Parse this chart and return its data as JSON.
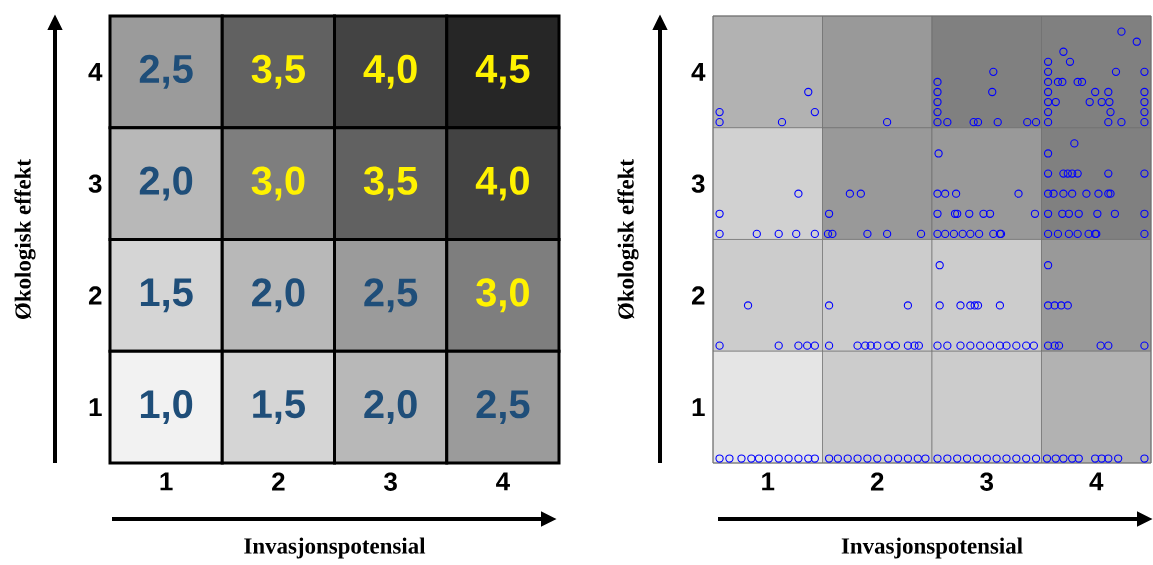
{
  "chart_data": [
    {
      "type": "heatmap",
      "categories": [
        "1",
        "2",
        "3",
        "4"
      ],
      "y_categories": [
        "4",
        "3",
        "2",
        "1"
      ],
      "cells": [
        [
          2.5,
          3.5,
          4.0,
          4.5
        ],
        [
          2.0,
          3.0,
          3.5,
          4.0
        ],
        [
          1.5,
          2.0,
          2.5,
          3.0
        ],
        [
          1.0,
          1.5,
          2.0,
          2.5
        ]
      ],
      "cell_labels": [
        [
          "2,5",
          "3,5",
          "4,0",
          "4,5"
        ],
        [
          "2,0",
          "3,0",
          "3,5",
          "4,0"
        ],
        [
          "1,5",
          "2,0",
          "2,5",
          "3,0"
        ],
        [
          "1,0",
          "1,5",
          "2,0",
          "2,5"
        ]
      ],
      "xlabel": "Invasjonspotensial",
      "ylabel": "Økologisk effekt"
    },
    {
      "type": "scatter",
      "xlabel": "Invasjonspotensial",
      "ylabel": "Økologisk effekt",
      "marker": "circle",
      "color": "#0000ff",
      "xlim": [
        0.5,
        4.5
      ],
      "ylim": [
        0.5,
        4.5
      ],
      "xticks": [
        1,
        2,
        3,
        4
      ],
      "yticks": [
        1,
        2,
        3,
        4
      ],
      "x": [
        0.56,
        0.56,
        1.13,
        1.37,
        1.43,
        2.09,
        2.55,
        2.55,
        2.55,
        2.55,
        2.55,
        2.64,
        2.88,
        2.92,
        3.06,
        3.05,
        3.1,
        3.37,
        3.45,
        3.56,
        3.56,
        3.56,
        3.56,
        3.56,
        3.56,
        3.56,
        3.63,
        3.65,
        3.69,
        3.7,
        3.76,
        3.83,
        3.87,
        3.94,
        3.99,
        4.05,
        4.11,
        4.12,
        4.13,
        4.11,
        4.18,
        4.23,
        4.23,
        4.37,
        4.44,
        4.44,
        4.44,
        4.44,
        4.44,
        0.56,
        0.9,
        1.1,
        1.26,
        1.43,
        0.56,
        1.28,
        1.55,
        1.59,
        1.91,
        2.09,
        2.4,
        1.56,
        1.75,
        1.85,
        2.55,
        2.62,
        2.7,
        2.78,
        2.85,
        2.93,
        3.06,
        3.12,
        3.13,
        2.55,
        2.71,
        2.73,
        2.84,
        2.97,
        3.03,
        3.44,
        2.55,
        2.62,
        2.72,
        3.29,
        2.56,
        3.56,
        3.65,
        3.75,
        3.83,
        3.93,
        3.99,
        4.0,
        4.44,
        3.56,
        3.69,
        3.75,
        3.84,
        4.01,
        4.17,
        4.44,
        3.56,
        3.61,
        3.7,
        3.78,
        3.91,
        4.02,
        4.11,
        4.13,
        3.56,
        3.7,
        3.74,
        3.78,
        3.83,
        4.11,
        4.44,
        3.56,
        3.8,
        0.56,
        1.1,
        1.28,
        1.36,
        1.43,
        0.82,
        1.56,
        1.82,
        1.89,
        1.94,
        2.0,
        2.1,
        2.17,
        2.28,
        2.34,
        2.38,
        1.56,
        2.28,
        2.55,
        2.64,
        2.76,
        2.85,
        2.94,
        3.03,
        3.12,
        3.18,
        3.27,
        3.36,
        3.43,
        2.57,
        2.76,
        2.85,
        2.89,
        2.92,
        3.12,
        2.57,
        3.56,
        3.62,
        3.66,
        4.04,
        4.11,
        4.44,
        3.56,
        3.62,
        3.68,
        3.74,
        3.56,
        0.56,
        0.65,
        0.76,
        0.85,
        0.92,
        1.01,
        1.1,
        1.19,
        1.28,
        1.37,
        1.43,
        1.56,
        1.64,
        1.73,
        1.82,
        1.91,
        2.0,
        2.1,
        2.19,
        2.28,
        2.37,
        2.44,
        2.55,
        2.64,
        2.73,
        2.82,
        2.91,
        3.0,
        3.09,
        3.18,
        3.27,
        3.36,
        3.45,
        3.55,
        3.63,
        3.7,
        3.78,
        3.84,
        3.99,
        4.05,
        4.11,
        4.2,
        4.44
      ],
      "values": [
        3.64,
        3.55,
        3.55,
        3.82,
        3.64,
        3.55,
        3.91,
        3.82,
        3.73,
        3.64,
        3.55,
        3.55,
        3.55,
        3.55,
        4.0,
        3.82,
        3.55,
        3.55,
        3.55,
        4.09,
        4.0,
        3.91,
        3.82,
        3.73,
        3.64,
        3.55,
        3.73,
        3.91,
        3.91,
        4.18,
        4.09,
        3.91,
        3.91,
        3.73,
        3.82,
        3.73,
        3.82,
        3.73,
        3.64,
        3.55,
        4.0,
        3.55,
        4.36,
        4.27,
        4.0,
        3.82,
        3.73,
        3.64,
        3.55,
        2.55,
        2.55,
        2.55,
        2.55,
        2.55,
        2.73,
        2.91,
        2.55,
        2.55,
        2.55,
        2.55,
        2.55,
        2.73,
        2.91,
        2.91,
        2.55,
        2.55,
        2.55,
        2.55,
        2.55,
        2.55,
        2.55,
        2.55,
        2.55,
        2.73,
        2.73,
        2.73,
        2.73,
        2.73,
        2.73,
        2.73,
        2.91,
        2.91,
        2.91,
        2.91,
        3.27,
        2.55,
        2.55,
        2.55,
        2.55,
        2.55,
        2.55,
        2.55,
        2.55,
        2.73,
        2.73,
        2.73,
        2.73,
        2.73,
        2.73,
        2.73,
        2.91,
        2.91,
        2.91,
        2.91,
        2.91,
        2.91,
        2.91,
        2.91,
        3.09,
        3.09,
        3.09,
        3.09,
        3.09,
        3.09,
        3.09,
        3.27,
        3.36,
        1.55,
        1.55,
        1.55,
        1.55,
        1.55,
        1.91,
        1.55,
        1.55,
        1.55,
        1.55,
        1.55,
        1.55,
        1.55,
        1.55,
        1.55,
        1.55,
        1.91,
        1.91,
        1.55,
        1.55,
        1.55,
        1.55,
        1.55,
        1.55,
        1.55,
        1.55,
        1.55,
        1.55,
        1.55,
        1.91,
        1.91,
        1.91,
        1.91,
        1.91,
        1.91,
        2.27,
        1.55,
        1.55,
        1.55,
        1.55,
        1.55,
        1.55,
        1.91,
        1.91,
        1.91,
        1.91,
        2.27,
        0.54,
        0.54,
        0.54,
        0.54,
        0.54,
        0.54,
        0.54,
        0.54,
        0.54,
        0.54,
        0.54,
        0.54,
        0.54,
        0.54,
        0.54,
        0.54,
        0.54,
        0.54,
        0.54,
        0.54,
        0.54,
        0.54,
        0.54,
        0.54,
        0.54,
        0.54,
        0.54,
        0.54,
        0.54,
        0.54,
        0.54,
        0.54,
        0.54,
        0.54,
        0.54,
        0.54,
        0.54,
        0.54,
        0.54,
        0.54,
        0.54,
        0.54,
        0.54
      ]
    }
  ]
}
